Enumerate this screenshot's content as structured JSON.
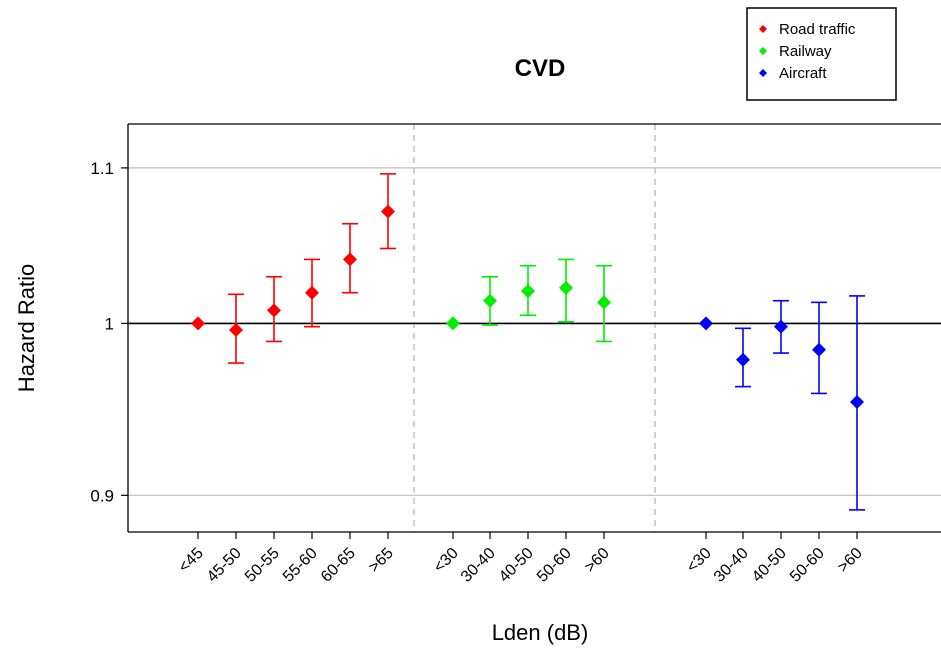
{
  "chart_data": {
    "type": "scatter",
    "title": "CVD",
    "xlabel": "Lden (dB)",
    "ylabel": "Hazard Ratio",
    "yscale": "log",
    "ylim": [
      0.88,
      1.13
    ],
    "yticks": [
      0.9,
      1.0,
      1.1
    ],
    "ytick_labels": [
      "0.9",
      "1",
      "1.1"
    ],
    "reference_line": 1.0,
    "grid": "horizontal",
    "legend_placement": "top-right",
    "series": [
      {
        "name": "Road traffic",
        "color": "#ff0000",
        "categories": [
          "<45",
          "45-50",
          "50-55",
          "55-60",
          "60-65",
          ">65"
        ],
        "values": [
          1.0,
          0.996,
          1.008,
          1.019,
          1.04,
          1.071
        ],
        "lower": [
          1.0,
          0.976,
          0.989,
          0.998,
          1.019,
          1.047
        ],
        "upper": [
          1.0,
          1.018,
          1.029,
          1.04,
          1.063,
          1.096
        ]
      },
      {
        "name": "Railway",
        "color": "#00ee00",
        "categories": [
          "<30",
          "30-40",
          "40-50",
          "50-60",
          ">60"
        ],
        "values": [
          1.0,
          1.014,
          1.02,
          1.022,
          1.013
        ],
        "lower": [
          1.0,
          0.999,
          1.005,
          1.001,
          0.989
        ],
        "upper": [
          1.0,
          1.029,
          1.036,
          1.04,
          1.036
        ]
      },
      {
        "name": "Aircraft",
        "color": "#0000ff",
        "categories": [
          "<30",
          "30-40",
          "40-50",
          "50-60",
          ">60"
        ],
        "values": [
          1.0,
          0.978,
          0.998,
          0.984,
          0.953
        ],
        "lower": [
          1.0,
          0.962,
          0.982,
          0.958,
          0.892
        ],
        "upper": [
          1.0,
          0.997,
          1.014,
          1.013,
          1.017
        ]
      }
    ]
  }
}
